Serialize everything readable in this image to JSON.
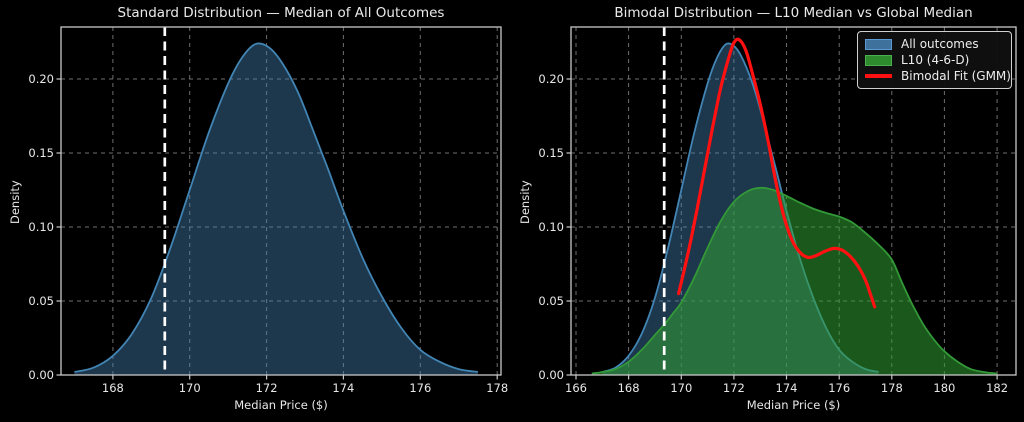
{
  "figure": {
    "background": "#000000"
  },
  "chart_data": [
    {
      "type": "area",
      "title": "Standard Distribution — Median of All Outcomes",
      "xlabel": "Median Price ($)",
      "ylabel": "Density",
      "xlim": [
        166.65,
        178.1
      ],
      "ylim": [
        0,
        0.2351
      ],
      "xticks": [
        168,
        170,
        172,
        174,
        176,
        178
      ],
      "xtick_labels": [
        "168",
        "170",
        "172",
        "174",
        "176",
        "178"
      ],
      "yticks": [
        0,
        0.05,
        0.1,
        0.15,
        0.2
      ],
      "ytick_labels": [
        "0.00",
        "0.05",
        "0.10",
        "0.15",
        "0.20"
      ],
      "grid": true,
      "legend": null,
      "vline": {
        "x": 169.35,
        "color": "#ffffff",
        "style": "dashed"
      },
      "series": [
        {
          "name": "All outcomes",
          "kind": "area",
          "fill": "rgba(70,130,180,0.42)",
          "edge": "#4285b4",
          "edge_width": 1.8,
          "points": [
            [
              167.0,
              0.002
            ],
            [
              167.5,
              0.005
            ],
            [
              168.0,
              0.013
            ],
            [
              168.5,
              0.028
            ],
            [
              169.0,
              0.052
            ],
            [
              169.5,
              0.086
            ],
            [
              170.0,
              0.125
            ],
            [
              170.5,
              0.164
            ],
            [
              171.0,
              0.197
            ],
            [
              171.35,
              0.214
            ],
            [
              171.7,
              0.2235
            ],
            [
              172.05,
              0.2215
            ],
            [
              172.4,
              0.211
            ],
            [
              172.8,
              0.192
            ],
            [
              173.2,
              0.166
            ],
            [
              173.6,
              0.139
            ],
            [
              174.0,
              0.111
            ],
            [
              174.5,
              0.079
            ],
            [
              175.0,
              0.053
            ],
            [
              175.5,
              0.032
            ],
            [
              176.0,
              0.017
            ],
            [
              176.5,
              0.009
            ],
            [
              177.0,
              0.004
            ],
            [
              177.5,
              0.002
            ]
          ]
        }
      ]
    },
    {
      "type": "area",
      "title": "Bimodal Distribution — L10 Median vs Global Median",
      "xlabel": "Median Price ($)",
      "ylabel": "Density",
      "xlim": [
        165.81,
        182.72
      ],
      "ylim": [
        0,
        0.2351
      ],
      "xticks": [
        166,
        168,
        170,
        172,
        174,
        176,
        178,
        180,
        182
      ],
      "xtick_labels": [
        "166",
        "168",
        "170",
        "172",
        "174",
        "176",
        "178",
        "180",
        "182"
      ],
      "yticks": [
        0,
        0.05,
        0.1,
        0.15,
        0.2
      ],
      "ytick_labels": [
        "0.00",
        "0.05",
        "0.10",
        "0.15",
        "0.20"
      ],
      "grid": true,
      "vline": {
        "x": 169.35,
        "color": "#ffffff",
        "style": "dashed"
      },
      "legend": {
        "position": "upper right",
        "items": [
          {
            "label": "All outcomes",
            "swatch": "patch",
            "fill": "rgba(70,130,180,0.85)",
            "edge": "#5b9bd5"
          },
          {
            "label": "L10 (4-6-D)",
            "swatch": "patch",
            "fill": "rgba(50,160,50,0.85)",
            "edge": "#4caf50"
          },
          {
            "label": "Bimodal Fit (GMM)",
            "swatch": "line",
            "color": "#ff1111"
          }
        ]
      },
      "series": [
        {
          "name": "All outcomes",
          "kind": "area",
          "fill": "rgba(70,130,180,0.42)",
          "edge": "#4285b4",
          "edge_width": 1.8,
          "points": [
            [
              167.0,
              0.002
            ],
            [
              167.5,
              0.005
            ],
            [
              168.0,
              0.013
            ],
            [
              168.5,
              0.028
            ],
            [
              169.0,
              0.052
            ],
            [
              169.5,
              0.086
            ],
            [
              170.0,
              0.125
            ],
            [
              170.5,
              0.164
            ],
            [
              171.0,
              0.197
            ],
            [
              171.35,
              0.214
            ],
            [
              171.7,
              0.2235
            ],
            [
              172.05,
              0.2215
            ],
            [
              172.4,
              0.211
            ],
            [
              172.8,
              0.192
            ],
            [
              173.2,
              0.166
            ],
            [
              173.6,
              0.139
            ],
            [
              174.0,
              0.111
            ],
            [
              174.5,
              0.079
            ],
            [
              175.0,
              0.053
            ],
            [
              175.5,
              0.032
            ],
            [
              176.0,
              0.017
            ],
            [
              176.5,
              0.009
            ],
            [
              177.0,
              0.004
            ],
            [
              177.5,
              0.002
            ]
          ]
        },
        {
          "name": "L10 (4-6-D)",
          "kind": "area",
          "fill": "rgba(50,160,50,0.55)",
          "edge": "#339938",
          "edge_width": 1.8,
          "points": [
            [
              166.6,
              0.001
            ],
            [
              167.0,
              0.002
            ],
            [
              167.5,
              0.004
            ],
            [
              168.0,
              0.009
            ],
            [
              168.5,
              0.017
            ],
            [
              169.0,
              0.027
            ],
            [
              169.4,
              0.035
            ],
            [
              169.7,
              0.042
            ],
            [
              170.0,
              0.049
            ],
            [
              170.5,
              0.066
            ],
            [
              171.0,
              0.086
            ],
            [
              171.5,
              0.104
            ],
            [
              172.0,
              0.117
            ],
            [
              172.5,
              0.124
            ],
            [
              173.0,
              0.1265
            ],
            [
              173.5,
              0.125
            ],
            [
              174.0,
              0.121
            ],
            [
              174.5,
              0.1165
            ],
            [
              175.0,
              0.1125
            ],
            [
              175.5,
              0.1095
            ],
            [
              176.0,
              0.107
            ],
            [
              176.5,
              0.103
            ],
            [
              177.0,
              0.096
            ],
            [
              177.5,
              0.088
            ],
            [
              178.0,
              0.078
            ],
            [
              178.4,
              0.062
            ],
            [
              178.8,
              0.047
            ],
            [
              179.2,
              0.034
            ],
            [
              179.6,
              0.024
            ],
            [
              180.0,
              0.016
            ],
            [
              180.5,
              0.009
            ],
            [
              181.0,
              0.004
            ],
            [
              181.5,
              0.002
            ],
            [
              182.0,
              0.001
            ]
          ]
        },
        {
          "name": "Bimodal Fit (GMM)",
          "kind": "line",
          "color": "#ff1111",
          "width": 3.2,
          "points": [
            [
              169.9,
              0.055
            ],
            [
              170.1,
              0.07
            ],
            [
              170.35,
              0.09
            ],
            [
              170.6,
              0.112
            ],
            [
              170.9,
              0.14
            ],
            [
              171.2,
              0.168
            ],
            [
              171.5,
              0.194
            ],
            [
              171.8,
              0.214
            ],
            [
              172.0,
              0.2245
            ],
            [
              172.2,
              0.2265
            ],
            [
              172.45,
              0.2195
            ],
            [
              172.7,
              0.204
            ],
            [
              173.0,
              0.183
            ],
            [
              173.3,
              0.158
            ],
            [
              173.6,
              0.13
            ],
            [
              173.9,
              0.107
            ],
            [
              174.2,
              0.0915
            ],
            [
              174.5,
              0.083
            ],
            [
              174.8,
              0.0795
            ],
            [
              175.1,
              0.0805
            ],
            [
              175.45,
              0.0835
            ],
            [
              175.8,
              0.0855
            ],
            [
              176.1,
              0.0845
            ],
            [
              176.4,
              0.0805
            ],
            [
              176.7,
              0.074
            ],
            [
              177.0,
              0.064
            ],
            [
              177.2,
              0.054
            ],
            [
              177.35,
              0.046
            ]
          ]
        }
      ]
    }
  ]
}
